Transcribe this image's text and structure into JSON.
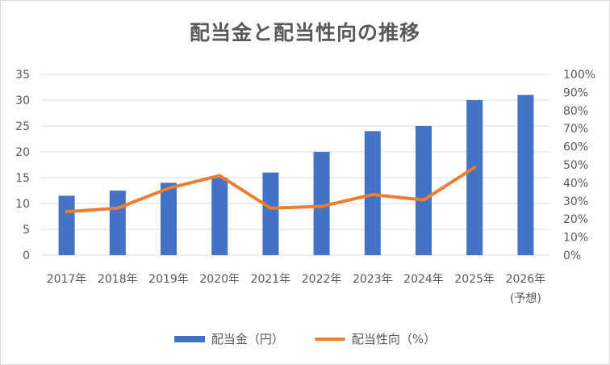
{
  "chart_data": {
    "type": "bar",
    "title": "配当金と配当性向の推移",
    "categories": [
      "2017年",
      "2018年",
      "2019年",
      "2020年",
      "2021年",
      "2022年",
      "2023年",
      "2024年",
      "2025年",
      "2026年\n(予想)"
    ],
    "series": [
      {
        "name": "配当金（円）",
        "type": "bar",
        "axis": "left",
        "color": "#4472c4",
        "values": [
          11.5,
          12.5,
          14,
          15,
          16,
          20,
          24,
          25,
          30,
          31
        ]
      },
      {
        "name": "配当性向（%）",
        "type": "line",
        "axis": "right",
        "color": "#ed7d31",
        "values": [
          24,
          26,
          37,
          44,
          26,
          27,
          33.5,
          30.5,
          48.5,
          null
        ]
      }
    ],
    "y_left": {
      "min": 0,
      "max": 35,
      "ticks": [
        "0",
        "5",
        "10",
        "15",
        "20",
        "25",
        "30",
        "35"
      ]
    },
    "y_right": {
      "min": 0,
      "max": 100,
      "ticks": [
        "0%",
        "10%",
        "20%",
        "30%",
        "40%",
        "50%",
        "60%",
        "70%",
        "80%",
        "90%",
        "100%"
      ]
    },
    "grid": true,
    "legend": "bottom"
  }
}
